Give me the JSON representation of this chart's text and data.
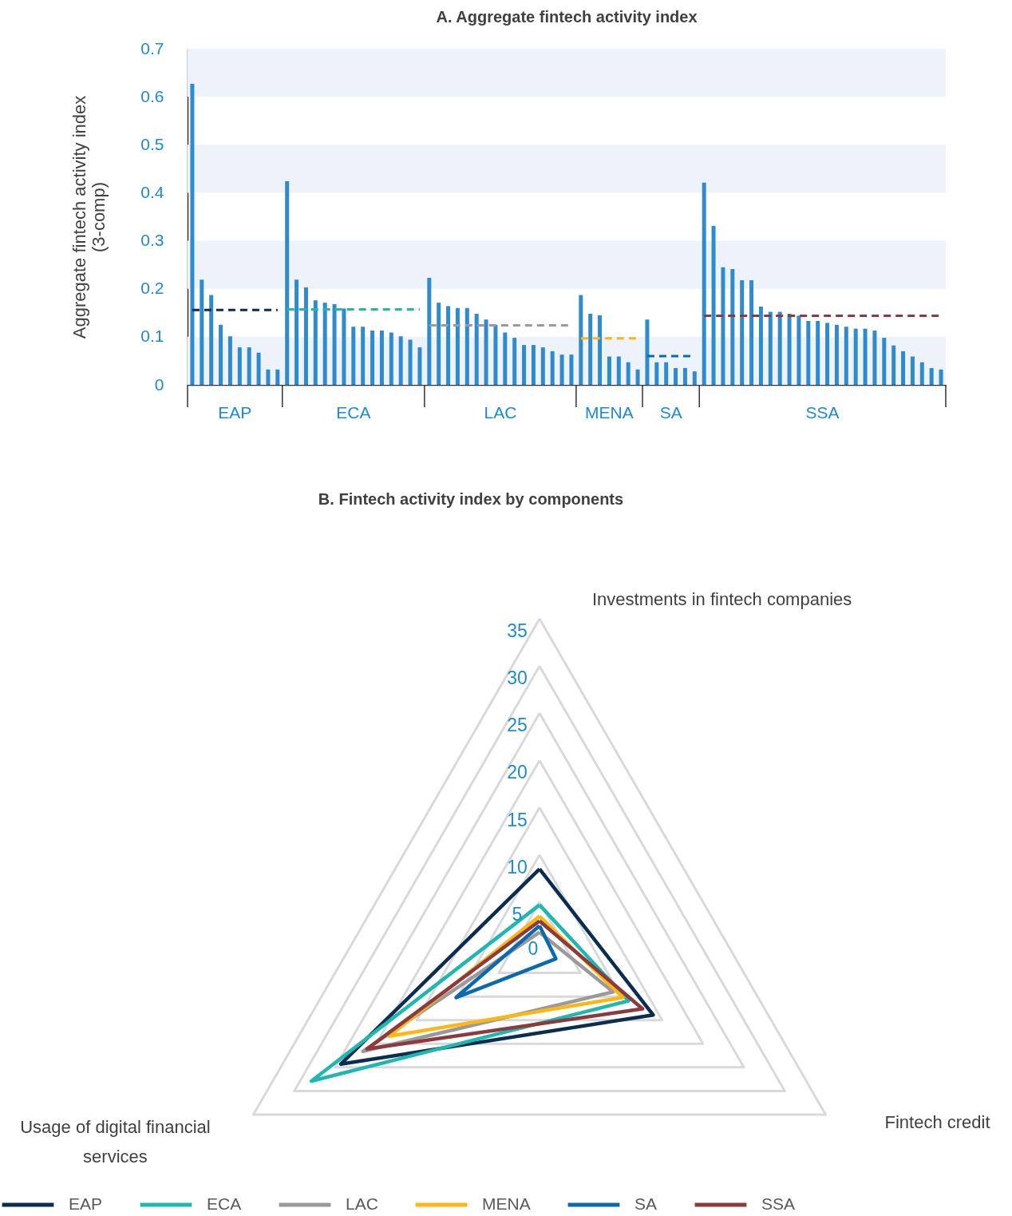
{
  "chart_data": [
    {
      "type": "bar",
      "title": "A. Aggregate fintech activity index",
      "ylabel": "Aggregate fintech activity index\n(3-comp)",
      "categories": [
        null,
        null,
        null,
        null,
        null,
        null,
        null,
        null,
        null,
        null,
        null,
        null,
        null,
        null,
        null,
        null,
        null,
        null,
        null,
        null,
        null,
        null,
        null,
        null,
        null,
        null,
        null,
        null,
        null,
        null,
        null,
        null,
        null,
        null,
        null,
        null,
        null,
        null,
        null,
        null,
        null,
        null,
        null,
        null,
        null,
        null,
        null,
        null,
        null,
        null,
        null,
        null,
        null,
        null,
        null,
        null,
        null,
        null,
        null,
        null,
        null,
        null,
        null,
        null,
        null,
        null,
        null,
        null,
        null,
        null,
        null,
        null,
        null,
        null,
        null,
        null,
        null,
        null,
        null,
        null
      ],
      "series": [
        {
          "type": "bar",
          "color": "#2e8bd0",
          "values": [
            0.627,
            0.219,
            0.187,
            0.125,
            0.101,
            0.078,
            0.078,
            0.067,
            0.032,
            0.032,
            0.424,
            0.219,
            0.203,
            0.176,
            0.171,
            0.168,
            0.159,
            0.121,
            0.121,
            0.113,
            0.113,
            0.109,
            0.101,
            0.094,
            0.078,
            0.223,
            0.171,
            0.164,
            0.16,
            0.16,
            0.148,
            0.136,
            0.125,
            0.109,
            0.098,
            0.083,
            0.083,
            0.078,
            0.07,
            0.063,
            0.063,
            0.187,
            0.148,
            0.145,
            0.059,
            0.059,
            0.047,
            0.032,
            0.136,
            0.047,
            0.047,
            0.035,
            0.035,
            0.028,
            0.421,
            0.331,
            0.245,
            0.241,
            0.218,
            0.218,
            0.163,
            0.152,
            0.152,
            0.148,
            0.144,
            0.133,
            0.133,
            0.129,
            0.125,
            0.121,
            0.117,
            0.117,
            0.113,
            0.098,
            0.082,
            0.07,
            0.059,
            0.047,
            0.035,
            0.032
          ]
        },
        {
          "type": "line",
          "color": "#0b2d4f",
          "values": [
            0.156,
            0.156,
            0.156,
            0.156,
            0.156,
            0.156,
            0.156,
            0.156,
            0.156,
            0.156,
            null,
            null,
            null,
            null,
            null,
            null,
            null,
            null,
            null,
            null,
            null,
            null,
            null,
            null,
            null,
            null,
            null,
            null,
            null,
            null,
            null,
            null,
            null,
            null,
            null,
            null,
            null,
            null,
            null,
            null,
            null,
            null,
            null,
            null,
            null,
            null,
            null,
            null,
            null,
            null,
            null,
            null,
            null,
            null,
            null,
            null,
            null,
            null,
            null,
            null,
            null,
            null,
            null,
            null,
            null,
            null,
            null,
            null,
            null,
            null,
            null,
            null,
            null,
            null,
            null,
            null,
            null,
            null,
            null,
            null
          ]
        },
        {
          "type": "line",
          "color": "#1fb8b0",
          "values": [
            null,
            null,
            null,
            null,
            null,
            null,
            null,
            null,
            null,
            null,
            0.157,
            0.157,
            0.157,
            0.157,
            0.157,
            0.157,
            0.157,
            0.157,
            0.157,
            0.157,
            0.157,
            0.157,
            0.157,
            0.157,
            0.157,
            null,
            null,
            null,
            null,
            null,
            null,
            null,
            null,
            null,
            null,
            null,
            null,
            null,
            null,
            null,
            null,
            null,
            null,
            null,
            null,
            null,
            null,
            null,
            null,
            null,
            null,
            null,
            null,
            null,
            null,
            null,
            null,
            null,
            null,
            null,
            null,
            null,
            null,
            null,
            null,
            null,
            null,
            null,
            null,
            null,
            null,
            null,
            null,
            null,
            null,
            null,
            null,
            null,
            null,
            null
          ]
        },
        {
          "type": "line",
          "color": "#9a9a9a",
          "values": [
            null,
            null,
            null,
            null,
            null,
            null,
            null,
            null,
            null,
            null,
            null,
            null,
            null,
            null,
            null,
            null,
            null,
            null,
            null,
            null,
            null,
            null,
            null,
            null,
            null,
            0.124,
            0.124,
            0.124,
            0.124,
            0.124,
            0.124,
            0.124,
            0.124,
            0.124,
            0.124,
            0.124,
            0.124,
            0.124,
            0.124,
            0.124,
            0.124,
            null,
            null,
            null,
            null,
            null,
            null,
            null,
            null,
            null,
            null,
            null,
            null,
            null,
            null,
            null,
            null,
            null,
            null,
            null,
            null,
            null,
            null,
            null,
            null,
            null,
            null,
            null,
            null,
            null,
            null,
            null,
            null,
            null,
            null,
            null,
            null,
            null,
            null,
            null
          ]
        },
        {
          "type": "line",
          "color": "#fbb713",
          "values": [
            null,
            null,
            null,
            null,
            null,
            null,
            null,
            null,
            null,
            null,
            null,
            null,
            null,
            null,
            null,
            null,
            null,
            null,
            null,
            null,
            null,
            null,
            null,
            null,
            null,
            null,
            null,
            null,
            null,
            null,
            null,
            null,
            null,
            null,
            null,
            null,
            null,
            null,
            null,
            null,
            null,
            0.097,
            0.097,
            0.097,
            0.097,
            0.097,
            0.097,
            0.097,
            null,
            null,
            null,
            null,
            null,
            null,
            null,
            null,
            null,
            null,
            null,
            null,
            null,
            null,
            null,
            null,
            null,
            null,
            null,
            null,
            null,
            null,
            null,
            null,
            null,
            null,
            null,
            null,
            null,
            null,
            null,
            null
          ]
        },
        {
          "type": "line",
          "color": "#0a6aad",
          "values": [
            null,
            null,
            null,
            null,
            null,
            null,
            null,
            null,
            null,
            null,
            null,
            null,
            null,
            null,
            null,
            null,
            null,
            null,
            null,
            null,
            null,
            null,
            null,
            null,
            null,
            null,
            null,
            null,
            null,
            null,
            null,
            null,
            null,
            null,
            null,
            null,
            null,
            null,
            null,
            null,
            null,
            null,
            null,
            null,
            null,
            null,
            null,
            null,
            0.06,
            0.06,
            0.06,
            0.06,
            0.06,
            0.06,
            null,
            null,
            null,
            null,
            null,
            null,
            null,
            null,
            null,
            null,
            null,
            null,
            null,
            null,
            null,
            null,
            null,
            null,
            null,
            null,
            null,
            null,
            null,
            null,
            null,
            null
          ]
        },
        {
          "type": "line",
          "color": "#8b3a3e",
          "values": [
            null,
            null,
            null,
            null,
            null,
            null,
            null,
            null,
            null,
            null,
            null,
            null,
            null,
            null,
            null,
            null,
            null,
            null,
            null,
            null,
            null,
            null,
            null,
            null,
            null,
            null,
            null,
            null,
            null,
            null,
            null,
            null,
            null,
            null,
            null,
            null,
            null,
            null,
            null,
            null,
            null,
            null,
            null,
            null,
            null,
            null,
            null,
            null,
            null,
            null,
            null,
            null,
            null,
            null,
            0.144,
            0.144,
            0.144,
            0.144,
            0.144,
            0.144,
            0.144,
            0.144,
            0.144,
            0.144,
            0.144,
            0.144,
            0.144,
            0.144,
            0.144,
            0.144,
            0.144,
            0.144,
            0.144,
            0.144,
            0.144,
            0.144,
            0.144,
            0.144,
            0.144,
            0.144
          ]
        }
      ],
      "line_style": "dashed",
      "annotations": [
        "EAP",
        "ECA",
        "LAC",
        "MENA",
        "SA",
        "SSA"
      ],
      "ylim": [
        0,
        0.7
      ],
      "yticks": [
        0,
        0.1,
        0.2,
        0.3,
        0.4,
        0.5,
        0.6,
        0.7
      ],
      "bands": [
        {
          "axis": "y",
          "from": 0,
          "to": 0.1,
          "color": "#eef3fb"
        },
        {
          "axis": "y",
          "from": 0.2,
          "to": 0.3,
          "color": "#eef3fb"
        },
        {
          "axis": "y",
          "from": 0.4,
          "to": 0.5,
          "color": "#eef3fb"
        },
        {
          "axis": "y",
          "from": 0.6,
          "to": 0.7,
          "color": "#eef3fb"
        }
      ]
    },
    {
      "type": "radar",
      "title": "B. Fintech activity index by components",
      "categories": [
        "Investments in fintech companies",
        "Fintech credit",
        "Usage of digital financial services"
      ],
      "series": [
        {
          "name": "EAP",
          "color": "#0b2d4f",
          "values": [
            8.5,
            13.9,
            24.3
          ]
        },
        {
          "name": "ECA",
          "color": "#1fb8b0",
          "values": [
            4.7,
            10.9,
            27.9
          ]
        },
        {
          "name": "LAC",
          "color": "#9a9a9a",
          "values": [
            1.8,
            9.0,
            21.6
          ]
        },
        {
          "name": "MENA",
          "color": "#fbb713",
          "values": [
            3.5,
            10.2,
            18.4
          ]
        },
        {
          "name": "SA",
          "color": "#0a6aad",
          "values": [
            2.5,
            2.0,
            10.2
          ]
        },
        {
          "name": "SSA",
          "color": "#8b3a3e",
          "values": [
            3.0,
            12.6,
            21.1
          ]
        }
      ],
      "ylim": [
        0,
        35
      ],
      "yticks": [
        0,
        5,
        10,
        15,
        20,
        25,
        30,
        35
      ],
      "grid": true,
      "legend": "bottom"
    }
  ]
}
